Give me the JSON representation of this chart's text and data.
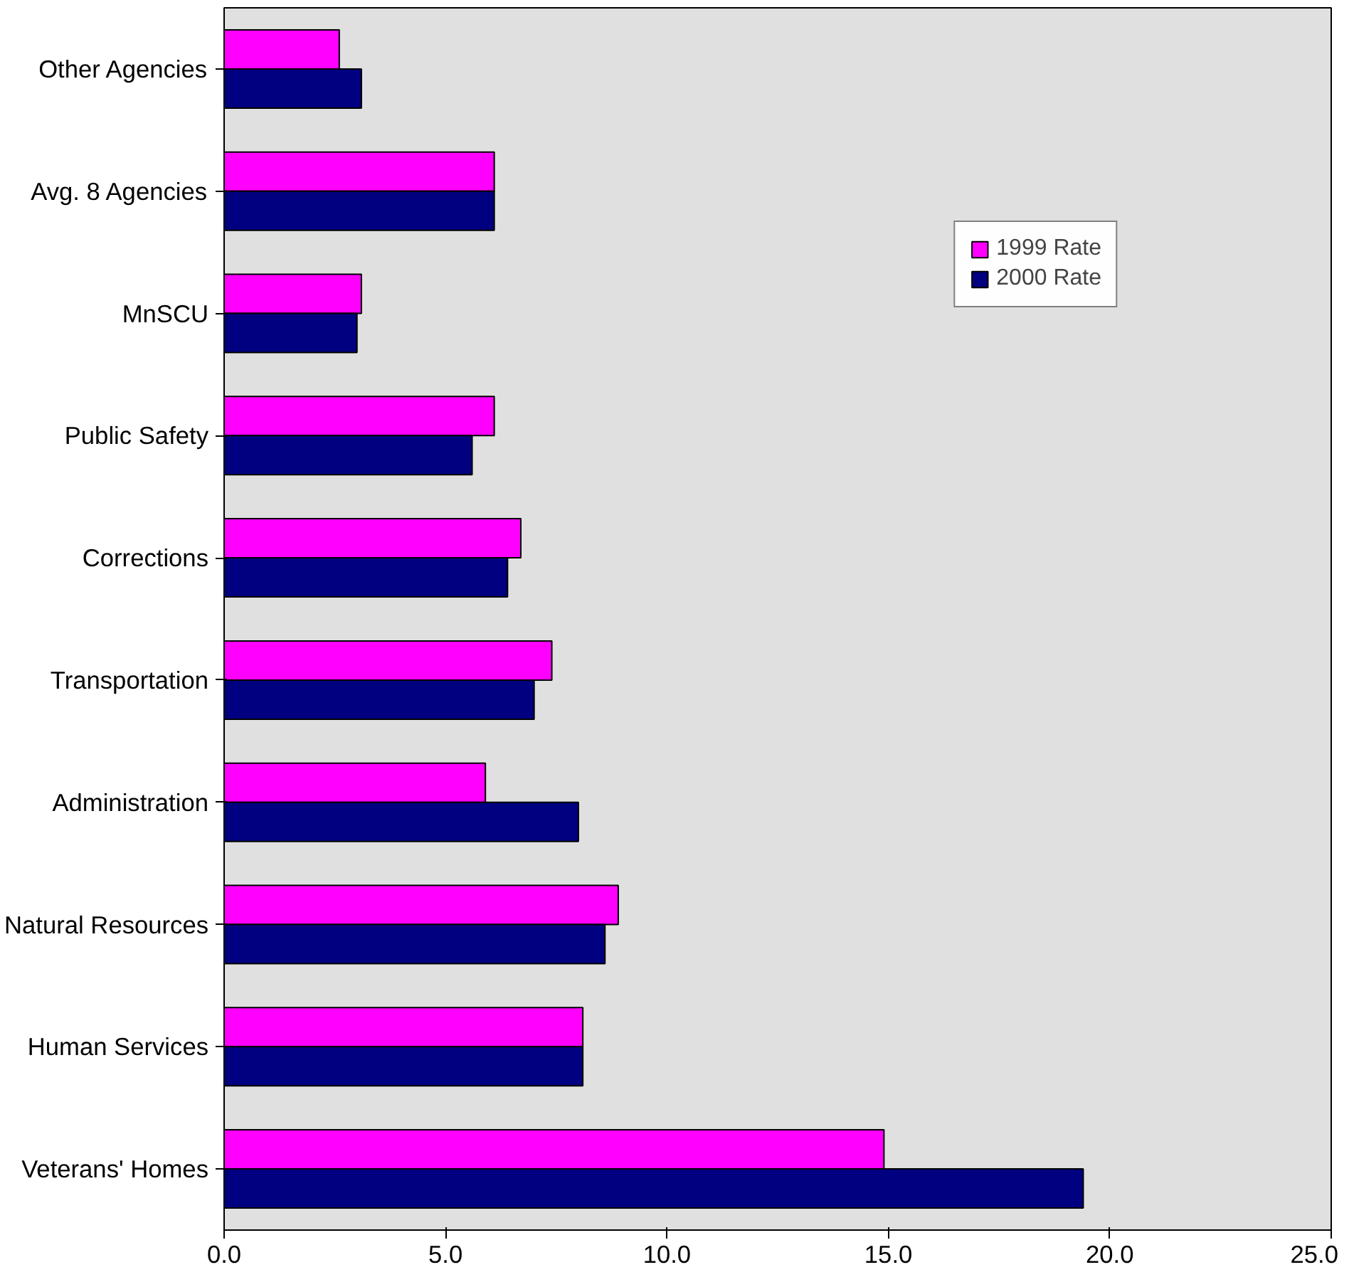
{
  "chart_data": {
    "type": "bar",
    "orientation": "horizontal",
    "categories": [
      "Other Agencies",
      "Avg. 8 Agencies",
      "MnSCU",
      "Public Safety",
      "Corrections",
      "Transportation",
      "Administration",
      "Natural Resources",
      "Human Services",
      "Veterans' Homes"
    ],
    "series": [
      {
        "name": "1999 Rate",
        "color": "#ff00ff",
        "values": [
          2.6,
          6.1,
          3.1,
          6.1,
          6.7,
          7.4,
          5.9,
          8.9,
          8.1,
          14.9
        ]
      },
      {
        "name": "2000 Rate",
        "color": "#000080",
        "values": [
          3.1,
          6.1,
          3.0,
          5.6,
          6.4,
          7.0,
          8.0,
          8.6,
          8.1,
          19.4
        ]
      }
    ],
    "xlim": [
      0,
      25
    ],
    "xticks": [
      {
        "value": 0,
        "label": "0.0"
      },
      {
        "value": 5,
        "label": "5.0"
      },
      {
        "value": 10,
        "label": "10.0"
      },
      {
        "value": 15,
        "label": "15.0"
      },
      {
        "value": 20,
        "label": "20.0"
      },
      {
        "value": 25,
        "label": "25.0"
      }
    ],
    "grid": false,
    "legend": "top right"
  }
}
